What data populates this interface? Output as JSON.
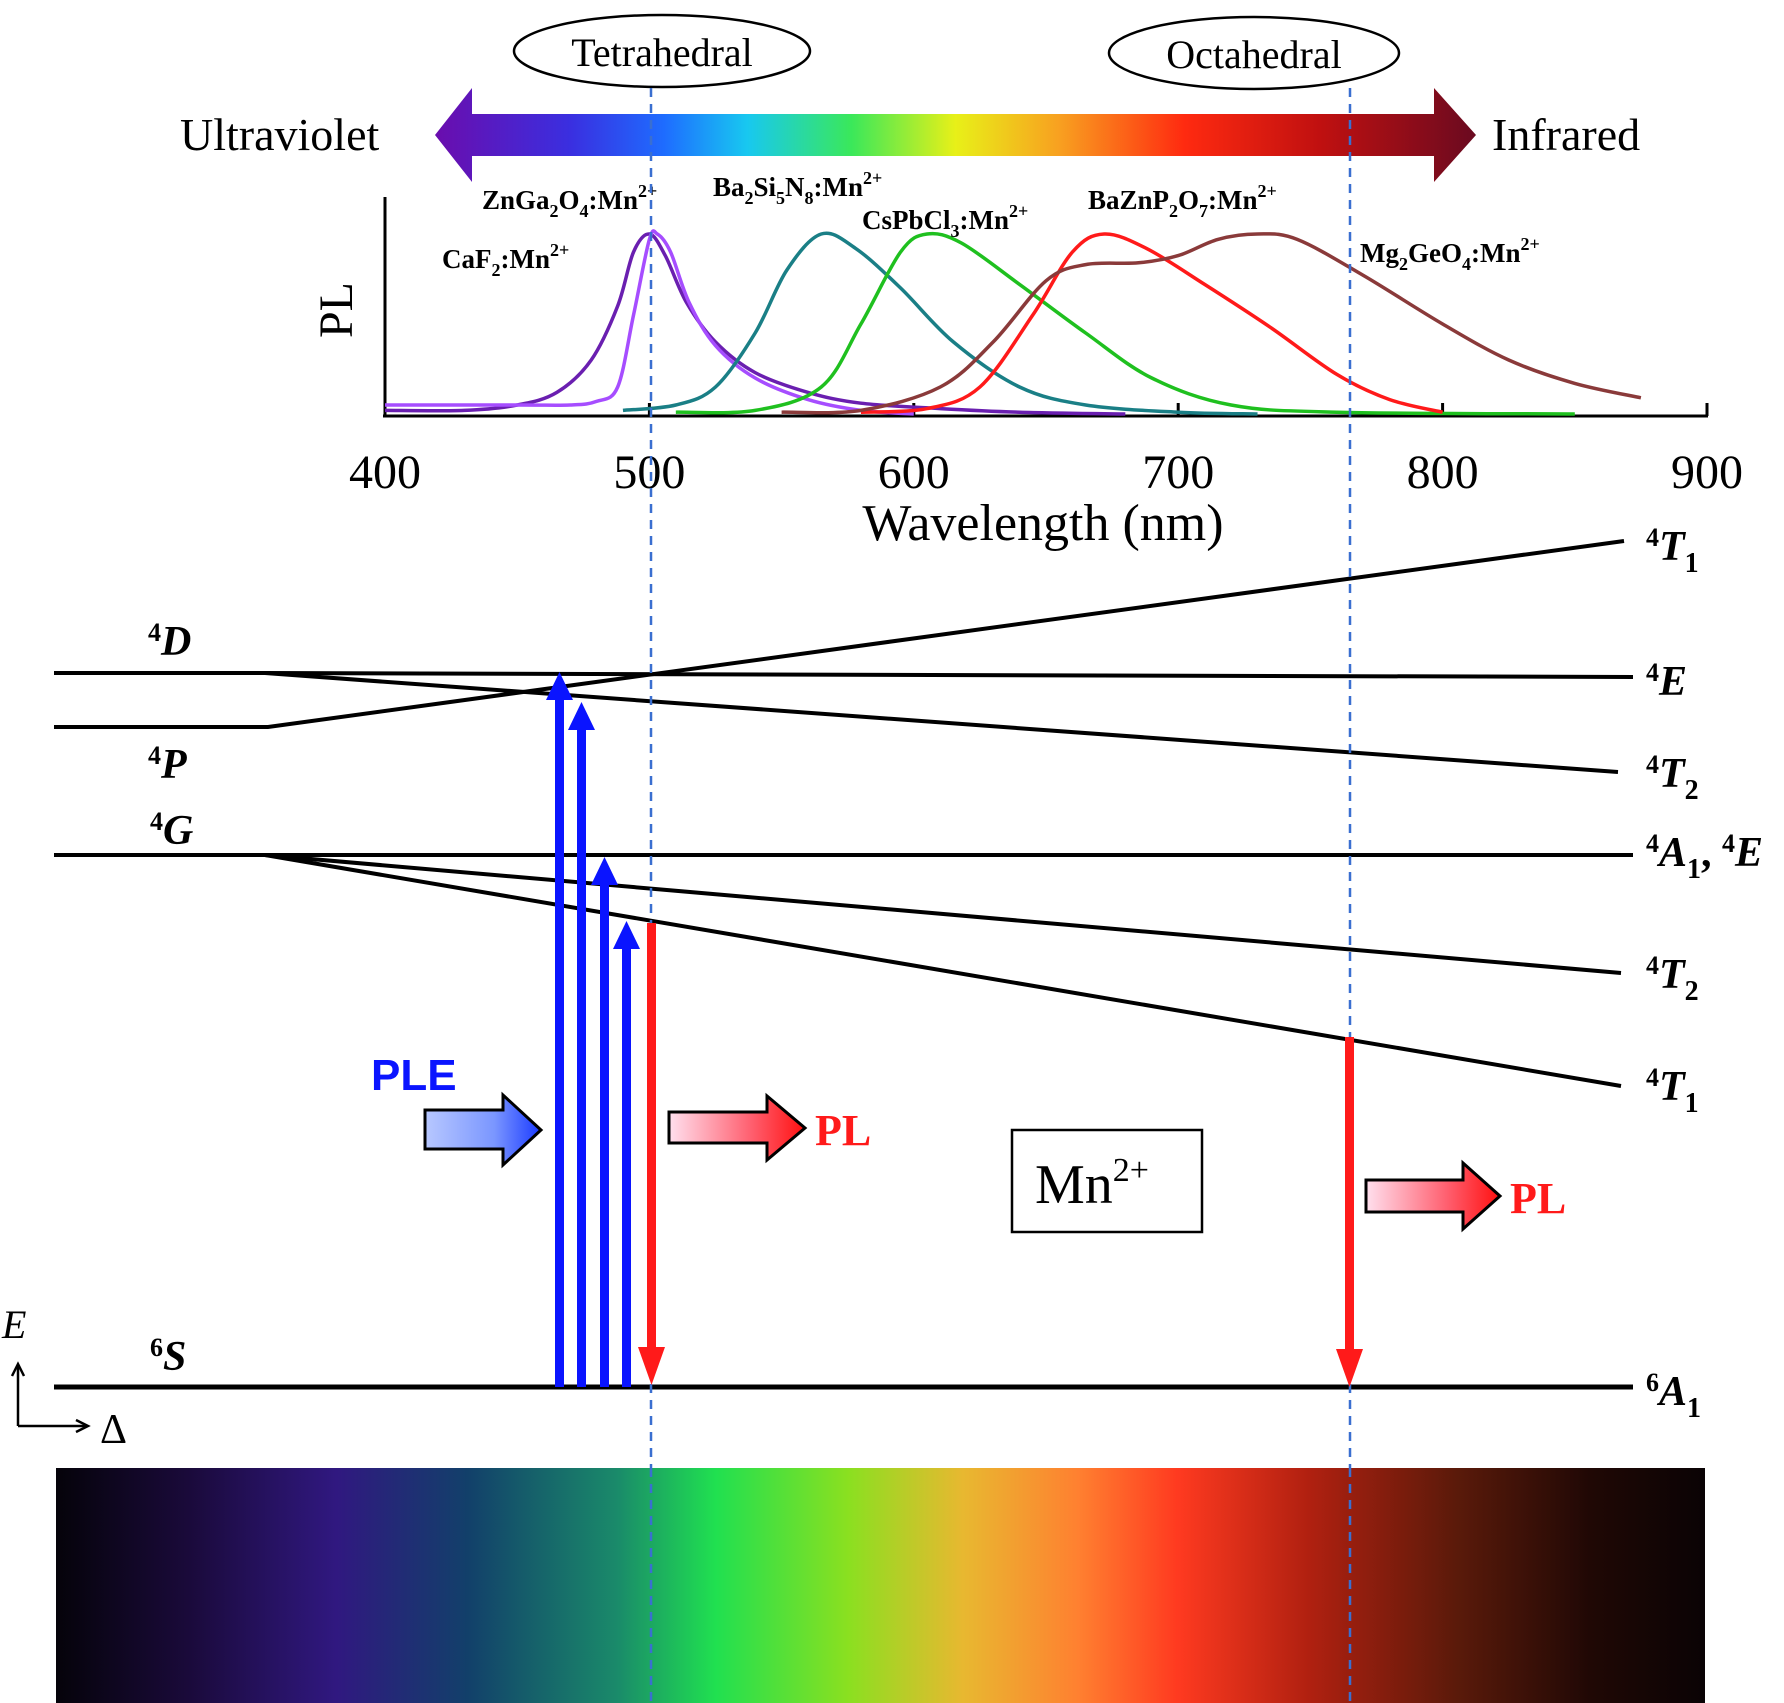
{
  "top_banner": {
    "tetrahedral_label": "Tetrahedral",
    "octahedral_label": "Octahedral",
    "ultraviolet_label": "Ultraviolet",
    "infrared_label": "Infrared"
  },
  "chart_data": {
    "type": "line",
    "ylabel": "PL",
    "xlabel": "Wavelength (nm)",
    "xlim": [
      400,
      900
    ],
    "xticks": [
      "400",
      "500",
      "600",
      "700",
      "800",
      "900"
    ],
    "ylim": [
      0,
      1.05
    ],
    "series": [
      {
        "name": "CaF2:Mn2+",
        "color": "#6a1fb0",
        "points": [
          [
            400,
            0.02
          ],
          [
            430,
            0.02
          ],
          [
            450,
            0.05
          ],
          [
            465,
            0.12
          ],
          [
            478,
            0.3
          ],
          [
            488,
            0.6
          ],
          [
            494,
            0.9
          ],
          [
            500,
            1.0
          ],
          [
            506,
            0.88
          ],
          [
            514,
            0.62
          ],
          [
            525,
            0.4
          ],
          [
            540,
            0.23
          ],
          [
            560,
            0.12
          ],
          [
            580,
            0.06
          ],
          [
            610,
            0.03
          ],
          [
            640,
            0.01
          ],
          [
            680,
            0.0
          ]
        ]
      },
      {
        "name": "ZnGa2O4:Mn2+",
        "color": "#a64dff",
        "points": [
          [
            400,
            0.05
          ],
          [
            450,
            0.05
          ],
          [
            470,
            0.05
          ],
          [
            480,
            0.07
          ],
          [
            488,
            0.15
          ],
          [
            494,
            0.55
          ],
          [
            500,
            0.97
          ],
          [
            503,
            1.0
          ],
          [
            508,
            0.9
          ],
          [
            515,
            0.62
          ],
          [
            525,
            0.38
          ],
          [
            540,
            0.2
          ],
          [
            560,
            0.08
          ],
          [
            580,
            0.02
          ],
          [
            600,
            0.0
          ]
        ]
      },
      {
        "name": "Ba2Si5N8:Mn2+",
        "color": "#1a7f86",
        "points": [
          [
            490,
            0.02
          ],
          [
            510,
            0.05
          ],
          [
            525,
            0.15
          ],
          [
            540,
            0.45
          ],
          [
            552,
            0.8
          ],
          [
            565,
            1.0
          ],
          [
            578,
            0.92
          ],
          [
            595,
            0.7
          ],
          [
            615,
            0.4
          ],
          [
            640,
            0.15
          ],
          [
            665,
            0.05
          ],
          [
            700,
            0.01
          ],
          [
            730,
            0.0
          ]
        ]
      },
      {
        "name": "CsPbCl3:Mn2+",
        "color": "#1fc01f",
        "points": [
          [
            510,
            0.01
          ],
          [
            540,
            0.02
          ],
          [
            565,
            0.15
          ],
          [
            580,
            0.5
          ],
          [
            595,
            0.9
          ],
          [
            605,
            1.0
          ],
          [
            618,
            0.95
          ],
          [
            640,
            0.72
          ],
          [
            665,
            0.45
          ],
          [
            690,
            0.2
          ],
          [
            720,
            0.05
          ],
          [
            760,
            0.01
          ],
          [
            850,
            0.0
          ]
        ]
      },
      {
        "name": "BaZnP2O7:Mn2+",
        "color": "#ff1a1a",
        "points": [
          [
            580,
            0.01
          ],
          [
            605,
            0.03
          ],
          [
            625,
            0.15
          ],
          [
            645,
            0.55
          ],
          [
            660,
            0.9
          ],
          [
            672,
            1.0
          ],
          [
            688,
            0.92
          ],
          [
            710,
            0.72
          ],
          [
            735,
            0.48
          ],
          [
            760,
            0.22
          ],
          [
            780,
            0.08
          ],
          [
            800,
            0.01
          ]
        ]
      },
      {
        "name": "Mg2GeO4:Mn2+",
        "color": "#8a3a3a",
        "points": [
          [
            550,
            0.01
          ],
          [
            580,
            0.02
          ],
          [
            610,
            0.15
          ],
          [
            630,
            0.4
          ],
          [
            650,
            0.74
          ],
          [
            665,
            0.83
          ],
          [
            685,
            0.84
          ],
          [
            700,
            0.88
          ],
          [
            715,
            0.97
          ],
          [
            730,
            1.0
          ],
          [
            745,
            0.97
          ],
          [
            770,
            0.77
          ],
          [
            800,
            0.5
          ],
          [
            825,
            0.3
          ],
          [
            850,
            0.17
          ],
          [
            875,
            0.09
          ]
        ]
      }
    ],
    "series_labels": {
      "znga2o4": {
        "base": "ZnGa",
        "sub1": "2",
        "mid": "O",
        "sub2": "4",
        "ion": ":Mn",
        "sup": "2+"
      },
      "caf2": {
        "base": "CaF",
        "sub1": "2",
        "ion": ":Mn",
        "sup": "2+"
      },
      "ba2si5n8": {
        "base": "Ba",
        "sub1": "2",
        "mid": "Si",
        "sub2": "5",
        "mid2": "N",
        "sub3": "8",
        "ion": ":Mn",
        "sup": "2+"
      },
      "cspbcl3": {
        "base": "CsPbCl",
        "sub1": "3",
        "ion": ":Mn",
        "sup": "2+"
      },
      "baznp2o7": {
        "base": "BaZnP",
        "sub1": "2",
        "mid": "O",
        "sub2": "7",
        "ion": ":Mn",
        "sup": "2+"
      },
      "mg2geo4": {
        "base": "Mg",
        "sub1": "2",
        "mid": "GeO",
        "sub2": "4",
        "ion": ":Mn",
        "sup": "2+"
      }
    }
  },
  "energy_diagram": {
    "free_ion_terms": {
      "d": {
        "sup": "4",
        "letter": "D"
      },
      "p": {
        "sup": "4",
        "letter": "P"
      },
      "g": {
        "sup": "4",
        "letter": "G"
      },
      "s": {
        "sup": "6",
        "letter": "S"
      }
    },
    "crystal_field_terms": {
      "t1_top": {
        "sup": "4",
        "letter": "T",
        "sub": "1"
      },
      "e": {
        "sup": "4",
        "letter": "E"
      },
      "t2_upper": {
        "sup": "4",
        "letter": "T",
        "sub": "2"
      },
      "a1e": {
        "sup1": "4",
        "letter1": "A",
        "sub1": "1",
        "comma": ", ",
        "sup2": "4",
        "letter2": "E"
      },
      "t2_lower": {
        "sup": "4",
        "letter": "T",
        "sub": "2"
      },
      "t1_lower": {
        "sup": "4",
        "letter": "T",
        "sub": "1"
      },
      "a1_ground": {
        "sup": "6",
        "letter": "A",
        "sub": "1"
      }
    },
    "ple_label": "PLE",
    "pl_label_left": "PL",
    "pl_label_right": "PL",
    "ion_box": {
      "base": "Mn",
      "sup": "2+"
    },
    "axes": {
      "e_label": "E",
      "delta_label": "Δ"
    },
    "colors": {
      "ple": "#0a14ff",
      "pl": "#ff1a1a",
      "dashed": "#3a6fd0"
    }
  }
}
